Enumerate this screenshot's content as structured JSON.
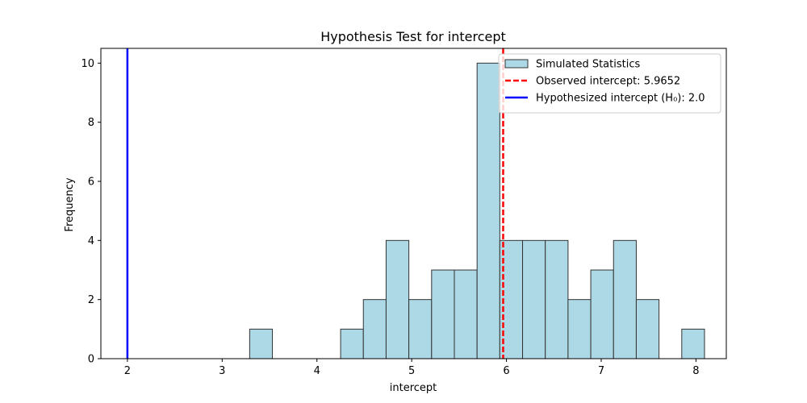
{
  "chart_data": {
    "type": "histogram",
    "title": "Hypothesis Test for intercept",
    "xlabel": "intercept",
    "ylabel": "Frequency",
    "xlim": [
      1.72,
      8.32
    ],
    "ylim": [
      0,
      10.5
    ],
    "xticks": [
      2,
      3,
      4,
      5,
      6,
      7,
      8
    ],
    "yticks": [
      0,
      2,
      4,
      6,
      8,
      10
    ],
    "grid": false,
    "legend_position": "top-right",
    "bins": [
      {
        "x0": 3.29,
        "x1": 3.53,
        "count": 1
      },
      {
        "x0": 4.25,
        "x1": 4.49,
        "count": 1
      },
      {
        "x0": 4.49,
        "x1": 4.73,
        "count": 2
      },
      {
        "x0": 4.73,
        "x1": 4.97,
        "count": 4
      },
      {
        "x0": 4.97,
        "x1": 5.21,
        "count": 2
      },
      {
        "x0": 5.21,
        "x1": 5.45,
        "count": 3
      },
      {
        "x0": 5.45,
        "x1": 5.69,
        "count": 3
      },
      {
        "x0": 5.69,
        "x1": 5.93,
        "count": 10
      },
      {
        "x0": 5.93,
        "x1": 6.17,
        "count": 4
      },
      {
        "x0": 6.17,
        "x1": 6.41,
        "count": 4
      },
      {
        "x0": 6.41,
        "x1": 6.65,
        "count": 4
      },
      {
        "x0": 6.65,
        "x1": 6.89,
        "count": 2
      },
      {
        "x0": 6.89,
        "x1": 7.13,
        "count": 3
      },
      {
        "x0": 7.13,
        "x1": 7.37,
        "count": 4
      },
      {
        "x0": 7.37,
        "x1": 7.61,
        "count": 2
      },
      {
        "x0": 7.85,
        "x1": 8.09,
        "count": 1
      }
    ],
    "bar_color": "#add8e6",
    "bar_edge_color": "#333333",
    "lines": [
      {
        "name": "Observed intercept: 5.9652",
        "x": 5.9652,
        "color": "#ff0000",
        "style": "dashed"
      },
      {
        "name": "Hypothesized intercept (H₀): 2.0",
        "x": 2.0,
        "color": "#0000ff",
        "style": "solid"
      }
    ],
    "legend": [
      {
        "label": "Simulated Statistics",
        "kind": "patch"
      },
      {
        "label": "Observed intercept: 5.9652",
        "kind": "dashed-line"
      },
      {
        "label": "Hypothesized intercept (H₀): 2.0",
        "kind": "solid-line"
      }
    ]
  }
}
